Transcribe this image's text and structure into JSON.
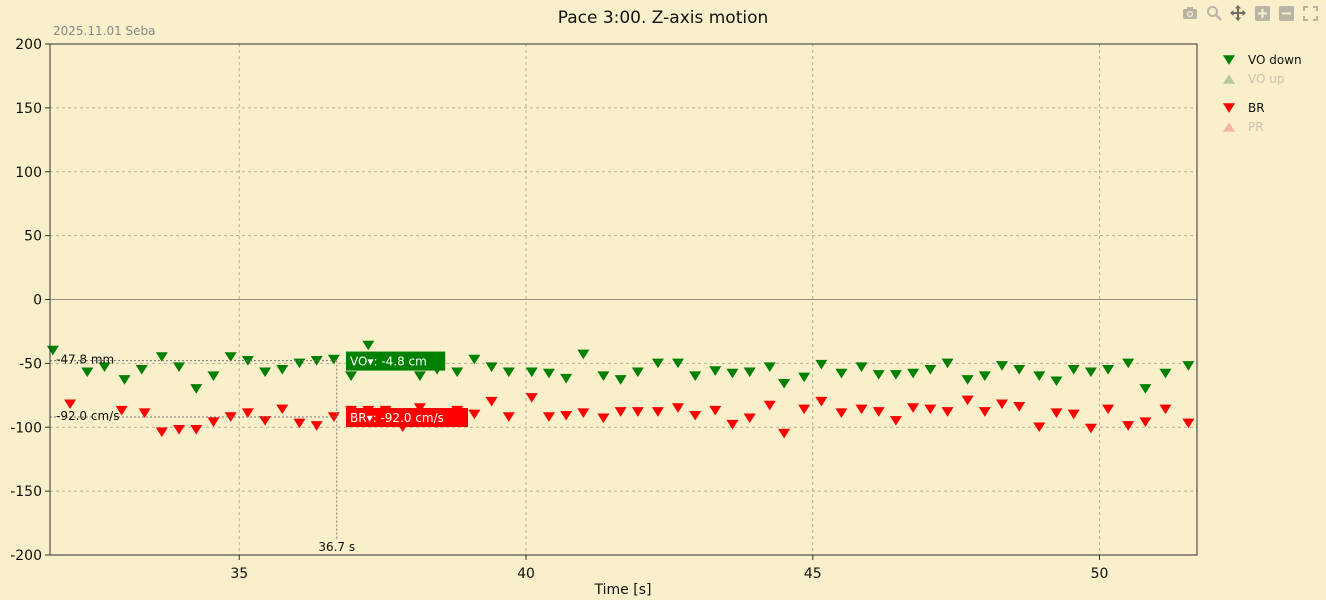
{
  "subtitle": "2025.11.01 Seba",
  "colors": {
    "background": "#f9efca",
    "green": "#008000",
    "red": "#ff0000",
    "faded_green": "#b5c99a",
    "faded_red": "#f5b3a3"
  },
  "toolbar": [
    {
      "name": "camera-icon",
      "active": false
    },
    {
      "name": "zoom-icon",
      "active": false
    },
    {
      "name": "pan-icon",
      "active": true
    },
    {
      "name": "zoom-in-icon",
      "active": false
    },
    {
      "name": "zoom-out-icon",
      "active": false
    },
    {
      "name": "fullscreen-icon",
      "active": false
    }
  ],
  "chart_data": {
    "type": "scatter",
    "title": "Pace 3:00. Z-axis motion",
    "xlabel": "Time [s]",
    "ylabel": "",
    "xlim": [
      31.7,
      51.7
    ],
    "ylim": [
      -200,
      200
    ],
    "xticks": [
      35,
      40,
      45,
      50
    ],
    "yticks": [
      200,
      150,
      100,
      50,
      0,
      -50,
      -100,
      -150,
      -200
    ],
    "grid": true,
    "legend_position": "right",
    "legend": [
      {
        "label": "VO down",
        "marker": "triangle-down",
        "color": "#008000",
        "visible": true
      },
      {
        "label": "VO up",
        "marker": "triangle-up",
        "color": "#b5c99a",
        "visible": false
      },
      {
        "label": "BR",
        "marker": "triangle-down",
        "color": "#ff0000",
        "visible": true
      },
      {
        "label": "PR",
        "marker": "triangle-up",
        "color": "#f5b3a3",
        "visible": false
      }
    ],
    "series": [
      {
        "name": "VO down",
        "color": "#008000",
        "marker": "triangle-down",
        "x": [
          31.75,
          32.35,
          32.65,
          33.0,
          33.3,
          33.65,
          33.95,
          34.25,
          34.55,
          34.85,
          35.15,
          35.45,
          35.75,
          36.05,
          36.35,
          36.65,
          36.95,
          37.25,
          37.55,
          37.85,
          38.15,
          38.45,
          38.8,
          39.1,
          39.4,
          39.7,
          40.1,
          40.4,
          40.7,
          41.0,
          41.35,
          41.65,
          41.95,
          42.3,
          42.65,
          42.95,
          43.3,
          43.6,
          43.9,
          44.25,
          44.5,
          44.85,
          45.15,
          45.5,
          45.85,
          46.15,
          46.45,
          46.75,
          47.05,
          47.35,
          47.7,
          48.0,
          48.3,
          48.6,
          48.95,
          49.25,
          49.55,
          49.85,
          50.15,
          50.5,
          50.8,
          51.15,
          51.55
        ],
        "y": [
          -40,
          -57,
          -53,
          -63,
          -55,
          -45,
          -53,
          -70,
          -60,
          -45,
          -48,
          -57,
          -55,
          -50,
          -48,
          -47,
          -60,
          -36,
          -52,
          -52,
          -60,
          -55,
          -57,
          -47,
          -53,
          -57,
          -57,
          -58,
          -62,
          -43,
          -60,
          -63,
          -57,
          -50,
          -50,
          -60,
          -56,
          -58,
          -57,
          -53,
          -66,
          -61,
          -51,
          -58,
          -53,
          -59,
          -59,
          -58,
          -55,
          -50,
          -63,
          -60,
          -52,
          -55,
          -60,
          -64,
          -55,
          -57,
          -55,
          -50,
          -70,
          -58,
          -52
        ]
      },
      {
        "name": "BR",
        "color": "#ff0000",
        "marker": "triangle-down",
        "x": [
          32.05,
          32.95,
          33.35,
          33.65,
          33.95,
          34.25,
          34.55,
          34.85,
          35.15,
          35.45,
          35.75,
          36.05,
          36.35,
          36.65,
          36.95,
          37.25,
          37.55,
          37.85,
          38.15,
          38.45,
          38.8,
          39.1,
          39.4,
          39.7,
          40.1,
          40.4,
          40.7,
          41.0,
          41.35,
          41.65,
          41.95,
          42.3,
          42.65,
          42.95,
          43.3,
          43.6,
          43.9,
          44.25,
          44.5,
          44.85,
          45.15,
          45.5,
          45.85,
          46.15,
          46.45,
          46.75,
          47.05,
          47.35,
          47.7,
          48.0,
          48.3,
          48.6,
          48.95,
          49.25,
          49.55,
          49.85,
          50.15,
          50.5,
          50.8,
          51.15,
          51.55
        ],
        "y": [
          -82,
          -87,
          -89,
          -104,
          -102,
          -102,
          -96,
          -92,
          -89,
          -95,
          -86,
          -97,
          -99,
          -92,
          -87,
          -87,
          -87,
          -100,
          -85,
          -97,
          -87,
          -90,
          -80,
          -92,
          -77,
          -92,
          -91,
          -89,
          -93,
          -88,
          -88,
          -88,
          -85,
          -91,
          -87,
          -98,
          -93,
          -83,
          -105,
          -86,
          -80,
          -89,
          -86,
          -88,
          -95,
          -85,
          -86,
          -88,
          -79,
          -88,
          -82,
          -84,
          -100,
          -89,
          -90,
          -101,
          -86,
          -99,
          -96,
          -86,
          -97
        ]
      }
    ],
    "crosshair": {
      "x": 36.7,
      "x_label": "36.7 s",
      "levels": [
        {
          "y": -47.8,
          "label": "-47.8 mm"
        },
        {
          "y": -92.0,
          "label": "-92.0 cm/s"
        }
      ]
    },
    "tooltips": [
      {
        "series": "VO",
        "text": "VO▾: -4.8 cm",
        "y": -47.8,
        "color": "#008000"
      },
      {
        "series": "BR",
        "text": "BR▾: -92.0 cm/s",
        "y": -92.0,
        "color": "#ff0000"
      }
    ]
  }
}
